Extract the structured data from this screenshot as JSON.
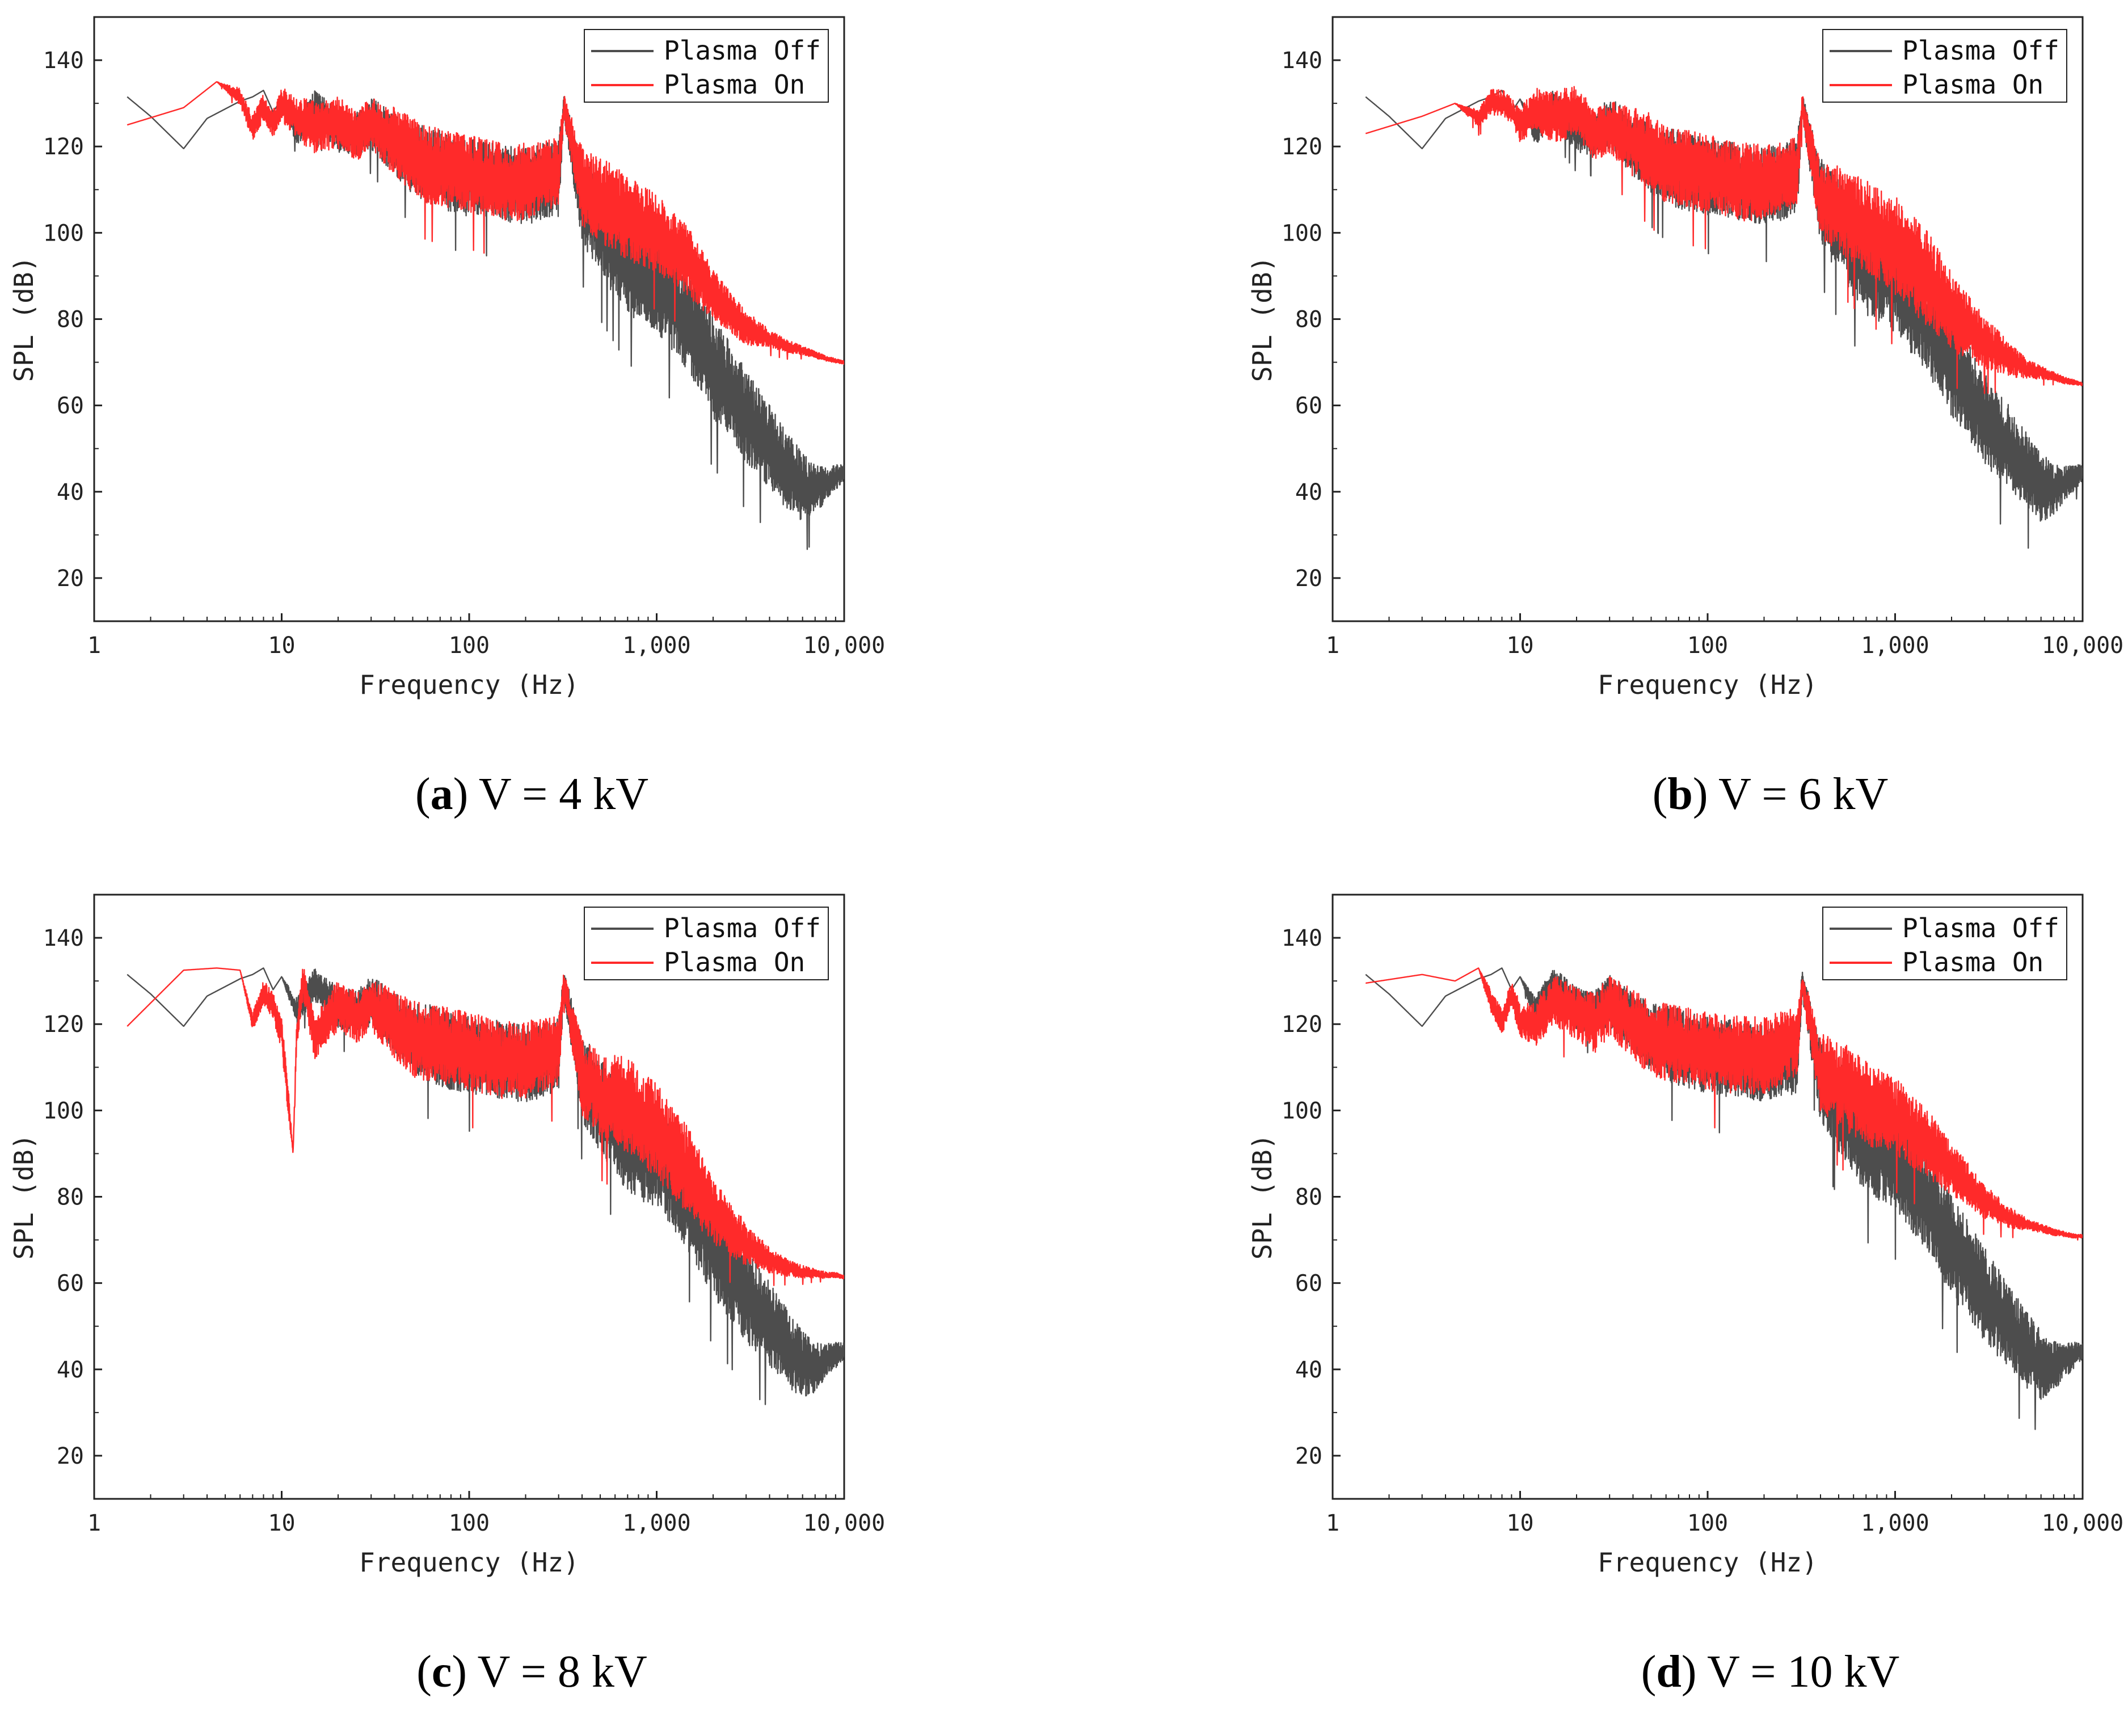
{
  "chart_data": [
    {
      "type": "line",
      "caption_letter": "a",
      "caption_text": "V = 4 kV",
      "xlabel": "Frequency (Hz)",
      "ylabel": "SPL (dB)",
      "xscale": "log",
      "xlim": [
        1,
        10000
      ],
      "ylim": [
        10,
        150
      ],
      "xticks": [
        1,
        10,
        100,
        1000,
        10000
      ],
      "xtick_labels": [
        "1",
        "10",
        "100",
        "1,000",
        "10,000"
      ],
      "yticks": [
        20,
        40,
        60,
        80,
        100,
        120,
        140
      ],
      "ytick_labels": [
        "20",
        "40",
        "60",
        "80",
        "100",
        "120",
        "140"
      ],
      "legend_position": "top-right",
      "series": [
        {
          "name": "Plasma Off",
          "color": "#4d4d4d",
          "x": [
            1.5,
            2,
            3,
            4,
            6,
            7,
            8,
            9,
            10,
            12,
            15,
            20,
            25,
            30,
            40,
            50,
            60,
            80,
            100,
            150,
            200,
            300,
            320,
            400,
            500,
            700,
            1000,
            1500,
            2000,
            3000,
            4000,
            5000,
            6000,
            7000,
            8000,
            9000,
            10000
          ],
          "y": [
            131.5,
            127,
            119.5,
            126.5,
            130.5,
            131.5,
            133,
            128,
            131,
            124,
            130,
            125,
            124,
            127,
            122,
            119,
            118,
            116,
            115,
            114,
            113,
            115,
            130,
            110,
            104,
            96,
            92,
            82,
            72,
            60,
            53,
            47,
            43,
            42,
            43,
            44,
            45
          ],
          "spread": [
            0,
            0,
            0,
            0,
            0,
            0,
            0,
            0,
            0,
            3,
            4,
            5,
            5,
            6,
            7,
            8,
            9,
            9,
            9,
            9,
            9,
            9,
            3,
            10,
            11,
            12,
            12,
            12,
            12,
            11,
            10,
            9,
            8,
            6,
            4,
            3,
            2
          ]
        },
        {
          "name": "Plasma On",
          "color": "#ff2a2a",
          "x": [
            1.5,
            3,
            4.5,
            6,
            7,
            8,
            9,
            10,
            12,
            15,
            20,
            25,
            30,
            40,
            50,
            60,
            80,
            100,
            150,
            200,
            300,
            320,
            400,
            500,
            700,
            1000,
            1500,
            2000,
            3000,
            4000,
            5000,
            6000,
            7000,
            8000,
            9000,
            10000
          ],
          "y": [
            125,
            129,
            135,
            132,
            125,
            130,
            126,
            131,
            128,
            126,
            127,
            124,
            127,
            123,
            120,
            118,
            117,
            116,
            114,
            114,
            116,
            130,
            113,
            110,
            106,
            102,
            95,
            87,
            79,
            76,
            74,
            73,
            72,
            71,
            70.5,
            70
          ],
          "spread": [
            0,
            0,
            0,
            2,
            3,
            3,
            3,
            4,
            5,
            6,
            6,
            6,
            6,
            8,
            9,
            9,
            9,
            9,
            9,
            9,
            8,
            3,
            9,
            10,
            10,
            9,
            8,
            6,
            4,
            2,
            1.5,
            1,
            0.8,
            0.6,
            0.5,
            0.4
          ]
        }
      ]
    },
    {
      "type": "line",
      "caption_letter": "b",
      "caption_text": "V = 6 kV",
      "xlabel": "Frequency (Hz)",
      "ylabel": "SPL (dB)",
      "xscale": "log",
      "xlim": [
        1,
        10000
      ],
      "ylim": [
        10,
        150
      ],
      "xticks": [
        1,
        10,
        100,
        1000,
        10000
      ],
      "xtick_labels": [
        "1",
        "10",
        "100",
        "1,000",
        "10,000"
      ],
      "yticks": [
        20,
        40,
        60,
        80,
        100,
        120,
        140
      ],
      "ytick_labels": [
        "20",
        "40",
        "60",
        "80",
        "100",
        "120",
        "140"
      ],
      "legend_position": "top-right",
      "series": [
        {
          "name": "Plasma Off",
          "color": "#4d4d4d",
          "x": [
            1.5,
            2,
            3,
            4,
            6,
            7,
            8,
            9,
            10,
            12,
            15,
            20,
            25,
            30,
            40,
            50,
            60,
            80,
            100,
            150,
            200,
            300,
            320,
            400,
            500,
            700,
            1000,
            1500,
            2000,
            3000,
            4000,
            5000,
            6000,
            7000,
            8000,
            9000,
            10000
          ],
          "y": [
            131.5,
            127,
            119.5,
            126.5,
            130.5,
            131.5,
            133,
            128,
            131,
            124,
            130,
            125,
            124,
            127,
            122,
            119,
            118,
            116,
            115,
            114,
            113,
            115,
            130,
            110,
            104,
            96,
            92,
            82,
            72,
            60,
            53,
            47,
            43,
            42,
            43,
            44,
            45
          ],
          "spread": [
            0,
            0,
            0,
            0,
            0,
            0,
            0,
            0,
            0,
            3,
            4,
            5,
            5,
            6,
            7,
            8,
            9,
            9,
            9,
            9,
            9,
            9,
            3,
            10,
            11,
            12,
            12,
            12,
            12,
            11,
            10,
            9,
            8,
            6,
            4,
            3,
            2
          ]
        },
        {
          "name": "Plasma On",
          "color": "#ff2a2a",
          "x": [
            1.5,
            3,
            4.5,
            6,
            7,
            8,
            9,
            10,
            12,
            15,
            20,
            25,
            30,
            40,
            50,
            60,
            80,
            100,
            150,
            200,
            300,
            320,
            400,
            500,
            700,
            1000,
            1500,
            2000,
            3000,
            4000,
            5000,
            6000,
            7000,
            8000,
            9000,
            10000
          ],
          "y": [
            123,
            127,
            130,
            127,
            131,
            131,
            129,
            126,
            130,
            128,
            130,
            124,
            126,
            123,
            121,
            118,
            117,
            116,
            114,
            114,
            116,
            130,
            110,
            108,
            104,
            100,
            92,
            84,
            76,
            72,
            69,
            68,
            67,
            66,
            65.5,
            65
          ],
          "spread": [
            0,
            0,
            0,
            2,
            3,
            3,
            3,
            4,
            5,
            6,
            6,
            6,
            6,
            8,
            9,
            9,
            9,
            9,
            9,
            9,
            8,
            3,
            9,
            10,
            11,
            12,
            11,
            9,
            6,
            4,
            2.5,
            1.5,
            1,
            0.8,
            0.6,
            0.4
          ]
        }
      ]
    },
    {
      "type": "line",
      "caption_letter": "c",
      "caption_text": "V = 8 kV",
      "xlabel": "Frequency (Hz)",
      "ylabel": "SPL (dB)",
      "xscale": "log",
      "xlim": [
        1,
        10000
      ],
      "ylim": [
        10,
        150
      ],
      "xticks": [
        1,
        10,
        100,
        1000,
        10000
      ],
      "xtick_labels": [
        "1",
        "10",
        "100",
        "1,000",
        "10,000"
      ],
      "yticks": [
        20,
        40,
        60,
        80,
        100,
        120,
        140
      ],
      "ytick_labels": [
        "20",
        "40",
        "60",
        "80",
        "100",
        "120",
        "140"
      ],
      "legend_position": "top-right",
      "series": [
        {
          "name": "Plasma Off",
          "color": "#4d4d4d",
          "x": [
            1.5,
            2,
            3,
            4,
            6,
            7,
            8,
            9,
            10,
            12,
            15,
            20,
            25,
            30,
            40,
            50,
            60,
            80,
            100,
            150,
            200,
            300,
            320,
            400,
            500,
            700,
            1000,
            1500,
            2000,
            3000,
            4000,
            5000,
            6000,
            7000,
            8000,
            9000,
            10000
          ],
          "y": [
            131.5,
            127,
            119.5,
            126.5,
            130.5,
            131.5,
            133,
            128,
            131,
            124,
            130,
            125,
            124,
            127,
            122,
            119,
            118,
            116,
            115,
            114,
            113,
            115,
            130,
            110,
            104,
            96,
            92,
            82,
            72,
            60,
            53,
            47,
            43,
            42,
            43,
            44,
            45
          ],
          "spread": [
            0,
            0,
            0,
            0,
            0,
            0,
            0,
            0,
            0,
            3,
            4,
            5,
            5,
            6,
            7,
            8,
            9,
            9,
            9,
            9,
            9,
            9,
            3,
            10,
            11,
            12,
            12,
            12,
            12,
            11,
            10,
            9,
            8,
            6,
            4,
            3,
            2
          ]
        },
        {
          "name": "Plasma On",
          "color": "#ff2a2a",
          "x": [
            1.5,
            3,
            4.5,
            6,
            7,
            8,
            9,
            10,
            11,
            11.5,
            12,
            13,
            15,
            20,
            25,
            30,
            40,
            50,
            60,
            80,
            100,
            150,
            200,
            300,
            320,
            400,
            500,
            700,
            1000,
            1500,
            2000,
            3000,
            4000,
            5000,
            6000,
            7000,
            8000,
            9000,
            10000
          ],
          "y": [
            119.5,
            132.5,
            133,
            132.5,
            121,
            128,
            125,
            119,
            100,
            90,
            118,
            131,
            118,
            126,
            123,
            126,
            122,
            119,
            118,
            117,
            116,
            114,
            114,
            116,
            130,
            110,
            106,
            104,
            98,
            88,
            79,
            70,
            66,
            64,
            63,
            62.5,
            62,
            62,
            61.5
          ],
          "spread": [
            0,
            0,
            0,
            0,
            2,
            3,
            3,
            4,
            3,
            0,
            3,
            4,
            5,
            6,
            6,
            6,
            8,
            9,
            9,
            9,
            9,
            9,
            9,
            8,
            3,
            9,
            10,
            11,
            11,
            10,
            8,
            5,
            3,
            2,
            1.5,
            1,
            0.8,
            0.6,
            0.4
          ]
        }
      ]
    },
    {
      "type": "line",
      "caption_letter": "d",
      "caption_text": "V = 10 kV",
      "xlabel": "Frequency (Hz)",
      "ylabel": "SPL (dB)",
      "xscale": "log",
      "xlim": [
        1,
        10000
      ],
      "ylim": [
        10,
        150
      ],
      "xticks": [
        1,
        10,
        100,
        1000,
        10000
      ],
      "xtick_labels": [
        "1",
        "10",
        "100",
        "1,000",
        "10,000"
      ],
      "yticks": [
        20,
        40,
        60,
        80,
        100,
        120,
        140
      ],
      "ytick_labels": [
        "20",
        "40",
        "60",
        "80",
        "100",
        "120",
        "140"
      ],
      "legend_position": "top-right",
      "series": [
        {
          "name": "Plasma Off",
          "color": "#4d4d4d",
          "x": [
            1.5,
            2,
            3,
            4,
            6,
            7,
            8,
            9,
            10,
            12,
            15,
            20,
            25,
            30,
            40,
            50,
            60,
            80,
            100,
            150,
            200,
            300,
            320,
            400,
            500,
            700,
            1000,
            1500,
            2000,
            3000,
            4000,
            5000,
            6000,
            7000,
            8000,
            9000,
            10000
          ],
          "y": [
            131.5,
            127,
            119.5,
            126.5,
            130.5,
            131.5,
            133,
            128,
            131,
            124,
            130,
            125,
            124,
            127,
            122,
            119,
            118,
            116,
            115,
            114,
            113,
            115,
            130,
            110,
            104,
            96,
            92,
            82,
            72,
            60,
            53,
            47,
            43,
            42,
            43,
            44,
            45
          ],
          "spread": [
            0,
            0,
            0,
            0,
            0,
            0,
            0,
            0,
            0,
            3,
            4,
            5,
            5,
            6,
            7,
            8,
            9,
            9,
            9,
            9,
            9,
            9,
            3,
            10,
            11,
            12,
            12,
            12,
            12,
            11,
            10,
            9,
            8,
            6,
            4,
            3,
            2
          ]
        },
        {
          "name": "Plasma On",
          "color": "#ff2a2a",
          "x": [
            1.5,
            3,
            4.5,
            6,
            7,
            8,
            9,
            10,
            12,
            15,
            20,
            25,
            30,
            40,
            50,
            60,
            80,
            100,
            150,
            200,
            300,
            320,
            400,
            500,
            700,
            1000,
            1500,
            2000,
            3000,
            4000,
            5000,
            6000,
            7000,
            8000,
            9000,
            10000
          ],
          "y": [
            129.5,
            131.5,
            130,
            133,
            126,
            121,
            128,
            122,
            121,
            127,
            124,
            122,
            126,
            122,
            119,
            118,
            117,
            116,
            115,
            115,
            118,
            130,
            111,
            109,
            104,
            101,
            94,
            88,
            80,
            76,
            74,
            73,
            72,
            71.5,
            71,
            71
          ],
          "spread": [
            0,
            0,
            0,
            0,
            3,
            3,
            3,
            4,
            5,
            6,
            6,
            7,
            7,
            8,
            9,
            9,
            9,
            9,
            9,
            9,
            8,
            3,
            9,
            10,
            10,
            9,
            8,
            6,
            4,
            2.5,
            1.5,
            1,
            0.8,
            0.6,
            0.5,
            0.4
          ]
        }
      ]
    }
  ]
}
